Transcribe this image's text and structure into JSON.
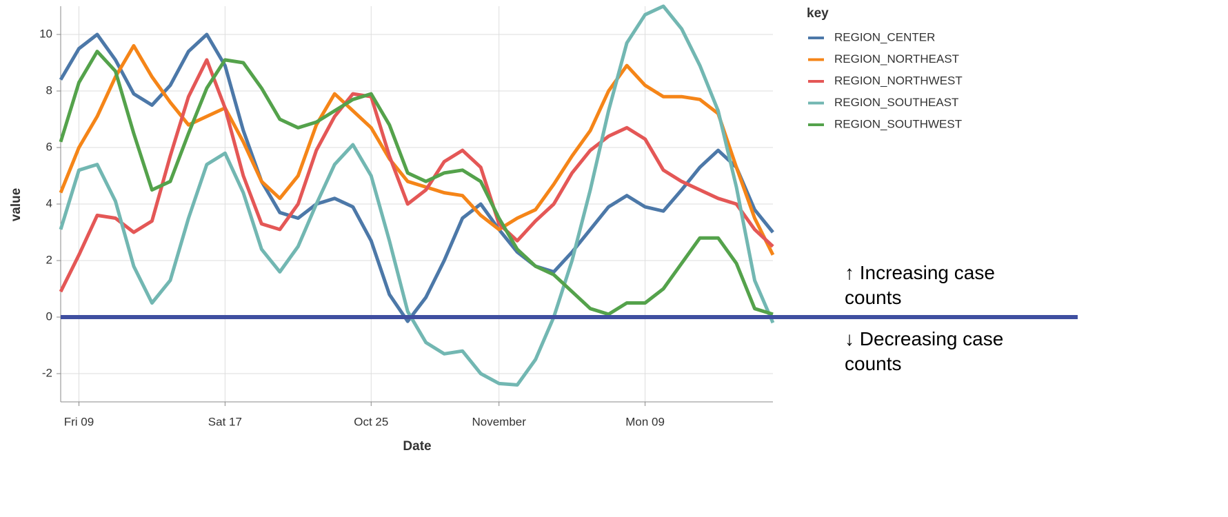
{
  "chart_data": {
    "type": "line",
    "x": [
      "Oct 08",
      "Oct 09",
      "Oct 10",
      "Oct 11",
      "Oct 12",
      "Oct 13",
      "Oct 14",
      "Oct 15",
      "Oct 16",
      "Oct 17",
      "Oct 18",
      "Oct 19",
      "Oct 20",
      "Oct 21",
      "Oct 22",
      "Oct 23",
      "Oct 24",
      "Oct 25",
      "Oct 26",
      "Oct 27",
      "Oct 28",
      "Oct 29",
      "Oct 30",
      "Oct 31",
      "Nov 01",
      "Nov 02",
      "Nov 03",
      "Nov 04",
      "Nov 05",
      "Nov 06",
      "Nov 07",
      "Nov 08",
      "Nov 09",
      "Nov 10",
      "Nov 11",
      "Nov 12",
      "Nov 13",
      "Nov 14",
      "Nov 15",
      "Nov 16"
    ],
    "x_label": "Date",
    "y_label": "value",
    "legend_title": "key",
    "ylim": [
      -3,
      11
    ],
    "yticks": [
      -2,
      0,
      2,
      4,
      6,
      8,
      10
    ],
    "xticks": [
      {
        "value": "Oct 09",
        "label": "Fri 09"
      },
      {
        "value": "Oct 17",
        "label": "Sat 17"
      },
      {
        "value": "Oct 25",
        "label": "Oct 25"
      },
      {
        "value": "Nov 01",
        "label": "November"
      },
      {
        "value": "Nov 09",
        "label": "Mon 09"
      }
    ],
    "grid": true,
    "series": [
      {
        "name": "REGION_CENTER",
        "color": "#4c78a8",
        "values": [
          8.4,
          9.5,
          10.0,
          9.1,
          7.9,
          7.5,
          8.2,
          9.4,
          10.0,
          8.9,
          6.6,
          4.8,
          3.7,
          3.5,
          4.0,
          4.2,
          3.9,
          2.7,
          0.8,
          -0.15,
          0.7,
          2.0,
          3.5,
          4.0,
          3.1,
          2.3,
          1.8,
          1.6,
          2.3,
          3.1,
          3.9,
          4.3,
          3.9,
          3.75,
          4.5,
          5.3,
          5.9,
          5.3,
          3.8,
          3.0
        ]
      },
      {
        "name": "REGION_NORTHEAST",
        "color": "#f58518",
        "values": [
          4.4,
          6.0,
          7.1,
          8.5,
          9.6,
          8.5,
          7.6,
          6.8,
          7.1,
          7.4,
          6.2,
          4.8,
          4.2,
          5.0,
          6.8,
          7.9,
          7.3,
          6.7,
          5.6,
          4.8,
          4.6,
          4.4,
          4.3,
          3.6,
          3.1,
          3.5,
          3.8,
          4.7,
          5.7,
          6.6,
          8.0,
          8.9,
          8.2,
          7.8,
          7.8,
          7.7,
          7.2,
          5.3,
          3.5,
          2.2
        ]
      },
      {
        "name": "REGION_NORTHWEST",
        "color": "#e45756",
        "values": [
          0.9,
          2.2,
          3.6,
          3.5,
          3.0,
          3.4,
          5.7,
          7.8,
          9.1,
          7.4,
          5.0,
          3.3,
          3.1,
          4.0,
          5.9,
          7.1,
          7.9,
          7.8,
          5.7,
          4.0,
          4.5,
          5.5,
          5.9,
          5.3,
          3.3,
          2.7,
          3.4,
          4.0,
          5.1,
          5.9,
          6.4,
          6.7,
          6.3,
          5.2,
          4.8,
          4.5,
          4.2,
          4.0,
          3.1,
          2.5
        ]
      },
      {
        "name": "REGION_SOUTHEAST",
        "color": "#72b7b2",
        "values": [
          3.1,
          5.2,
          5.4,
          4.1,
          1.8,
          0.5,
          1.3,
          3.5,
          5.4,
          5.8,
          4.4,
          2.4,
          1.6,
          2.5,
          4.0,
          5.4,
          6.1,
          5.0,
          2.7,
          0.2,
          -0.9,
          -1.3,
          -1.2,
          -2.0,
          -2.35,
          -2.4,
          -1.5,
          0.0,
          2.0,
          4.5,
          7.3,
          9.7,
          10.7,
          11.0,
          10.2,
          8.9,
          7.3,
          4.6,
          1.3,
          -0.2
        ]
      },
      {
        "name": "REGION_SOUTHWEST",
        "color": "#54a24b",
        "values": [
          6.2,
          8.3,
          9.4,
          8.7,
          6.5,
          4.5,
          4.8,
          6.5,
          8.1,
          9.1,
          9.0,
          8.1,
          7.0,
          6.7,
          6.9,
          7.3,
          7.7,
          7.9,
          6.8,
          5.1,
          4.8,
          5.1,
          5.2,
          4.8,
          3.5,
          2.4,
          1.8,
          1.5,
          0.9,
          0.3,
          0.1,
          0.5,
          0.5,
          1.0,
          1.9,
          2.8,
          2.8,
          1.9,
          0.3,
          0.1
        ]
      }
    ],
    "reference_line": {
      "value": 0,
      "color": "#3f4fa0"
    },
    "annotations": [
      "↑ Increasing case counts",
      "↓ Decreasing case counts"
    ]
  }
}
